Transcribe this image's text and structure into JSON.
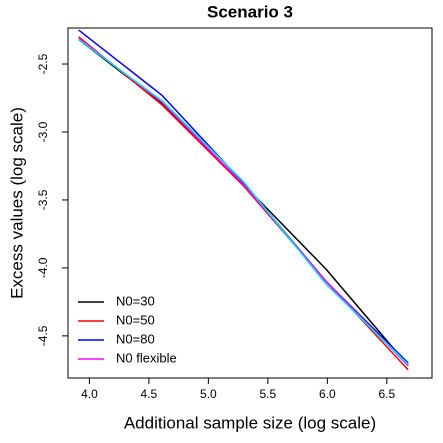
{
  "chart_data": {
    "type": "line",
    "title": "Scenario 3",
    "x_label": "Additional sample size (log scale)",
    "y_label": "Excess values (log scale)",
    "x": [
      3.91,
      4.61,
      5.3,
      5.99,
      6.68
    ],
    "series": [
      {
        "name": "N0=30",
        "color": "#000000",
        "values": [
          -2.32,
          -2.79,
          -3.39,
          -4.01,
          -4.72
        ]
      },
      {
        "name": "N0=50",
        "color": "#ff0000",
        "values": [
          -2.3,
          -2.8,
          -3.4,
          -4.1,
          -4.75
        ]
      },
      {
        "name": "N0=80",
        "color": "#0000ff",
        "values": [
          -2.25,
          -2.73,
          -3.38,
          -4.1,
          -4.7
        ]
      },
      {
        "name": "N0 flexible",
        "color": "#ff00ff",
        "values": [
          -2.31,
          -2.78,
          -3.39,
          -4.1,
          -4.72
        ]
      },
      {
        "color": "#00e5ee",
        "values": [
          -2.32,
          -2.77,
          -3.37,
          -4.12,
          -4.71
        ]
      }
    ],
    "xlim": [
      3.82,
      6.88
    ],
    "ylim": [
      -4.81,
      -2.235
    ],
    "xticks": [
      {
        "value": 4.0,
        "label": "4.0"
      },
      4.5,
      {
        "value": 5.0,
        "label": "5.0"
      },
      5.5,
      {
        "value": 6.0,
        "label": "6.0"
      },
      6.5
    ],
    "yticks": [
      -2.5,
      {
        "value": -3.0,
        "label": "-3.0"
      },
      -3.5,
      {
        "value": -4.0,
        "label": "-4.0"
      },
      -4.5
    ],
    "legend": "bottom-left"
  }
}
